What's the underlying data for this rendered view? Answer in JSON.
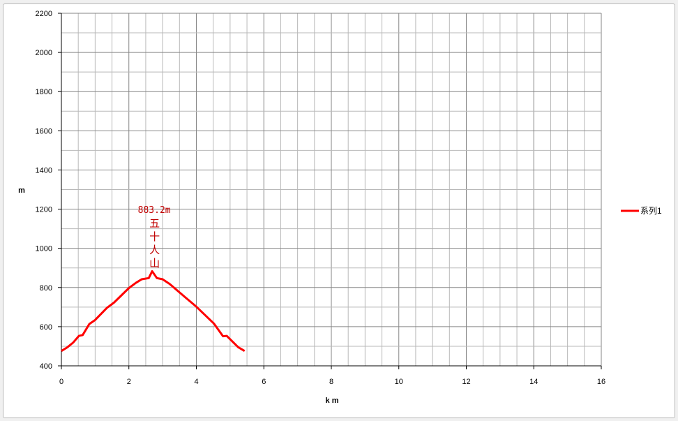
{
  "chart_data": {
    "type": "line",
    "xlabel": "k m",
    "ylabel": "m",
    "xlim": [
      0,
      16
    ],
    "ylim": [
      400,
      2200
    ],
    "xticks": [
      0,
      2,
      4,
      6,
      8,
      10,
      12,
      14,
      16
    ],
    "yticks": [
      400,
      600,
      800,
      1000,
      1200,
      1400,
      1600,
      1800,
      2000,
      2200
    ],
    "grid": true,
    "legend": "right",
    "series": [
      {
        "name": "系列1",
        "color": "#ff0000",
        "x": [
          0,
          0.18,
          0.35,
          0.52,
          0.63,
          0.83,
          1.0,
          1.35,
          1.56,
          2.0,
          2.21,
          2.38,
          2.59,
          2.69,
          2.83,
          3.0,
          3.21,
          3.69,
          4.0,
          4.52,
          4.79,
          4.9,
          5.24,
          5.43
        ],
        "y": [
          476,
          495,
          519,
          553,
          557,
          614,
          634,
          696,
          723,
          797,
          824,
          842,
          848,
          883.2,
          848,
          842,
          818,
          747,
          702,
          616,
          551,
          553,
          495,
          476
        ]
      }
    ],
    "annotations": [
      {
        "text": "883.2m",
        "x": 2.69,
        "y": 883.2
      },
      {
        "text": "五十人山",
        "x": 2.69,
        "y": 883.2
      }
    ]
  }
}
